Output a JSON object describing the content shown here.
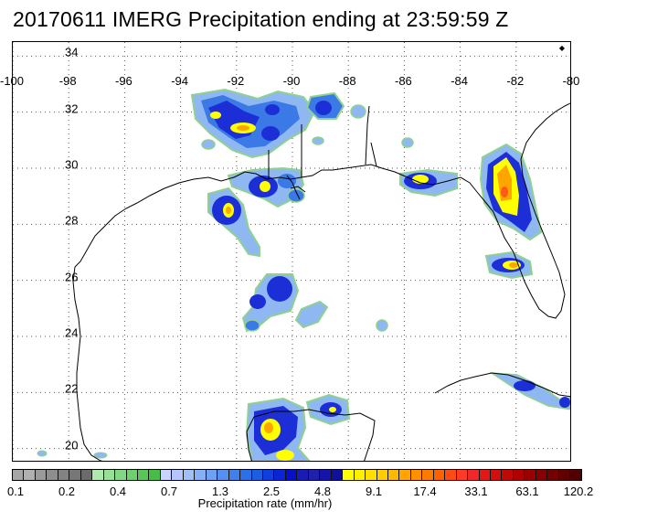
{
  "title": "20170611 IMERG Precipitation ending at 23:59:59 Z",
  "map": {
    "lon_range": [
      -100,
      -80
    ],
    "lat_range": [
      19.5,
      34.5
    ],
    "lon_ticks": [
      "-100",
      "-98",
      "-96",
      "-94",
      "-92",
      "-90",
      "-88",
      "-86",
      "-84",
      "-82",
      "-80"
    ],
    "lat_ticks": [
      "34",
      "32",
      "30",
      "28",
      "26",
      "24",
      "22",
      "20"
    ],
    "grid": "dotted",
    "coastline_color": "#000000",
    "precip_palette": {
      "light_green": "#8fd18f",
      "light_blue": "#8fb8f2",
      "mid_blue": "#3a79e6",
      "dark_blue": "#1c2fd6",
      "yellow": "#ffff00",
      "orange": "#ffa500",
      "red_orange": "#ff5a1a"
    },
    "corner_marker": "◆"
  },
  "colorbar": {
    "label": "Precipitation rate (mm/hr)",
    "tick_labels": [
      "0.1",
      "0.2",
      "0.4",
      "0.7",
      "1.3",
      "2.5",
      "4.8",
      "9.1",
      "17.4",
      "33.1",
      "63.1",
      "120.2"
    ],
    "colors": [
      "#a6a6a6",
      "#b0b0b0",
      "#9a9a9a",
      "#8e8e8e",
      "#838383",
      "#777777",
      "#6b6b6b",
      "#aee8ae",
      "#98e098",
      "#82d882",
      "#6dcf6d",
      "#58c658",
      "#45be45",
      "#c8d4ff",
      "#b5c6ff",
      "#9ec0f7",
      "#86b0f5",
      "#6ea0f3",
      "#5690ef",
      "#3f80eb",
      "#2b70e6",
      "#1c5ee0",
      "#1040dc",
      "#0a25d4",
      "#0510c8",
      "#1a1ab4",
      "#2020a8",
      "#1414aa",
      "#10109e",
      "#ffff00",
      "#ffef00",
      "#ffdf00",
      "#ffcc00",
      "#ffb800",
      "#ffa500",
      "#ff9000",
      "#ff7a00",
      "#ff6000",
      "#ff4a14",
      "#ff3a28",
      "#f02828",
      "#e01818",
      "#d01010",
      "#c00808",
      "#b00000",
      "#9a0000",
      "#880000",
      "#740000",
      "#620000",
      "#500000"
    ]
  }
}
